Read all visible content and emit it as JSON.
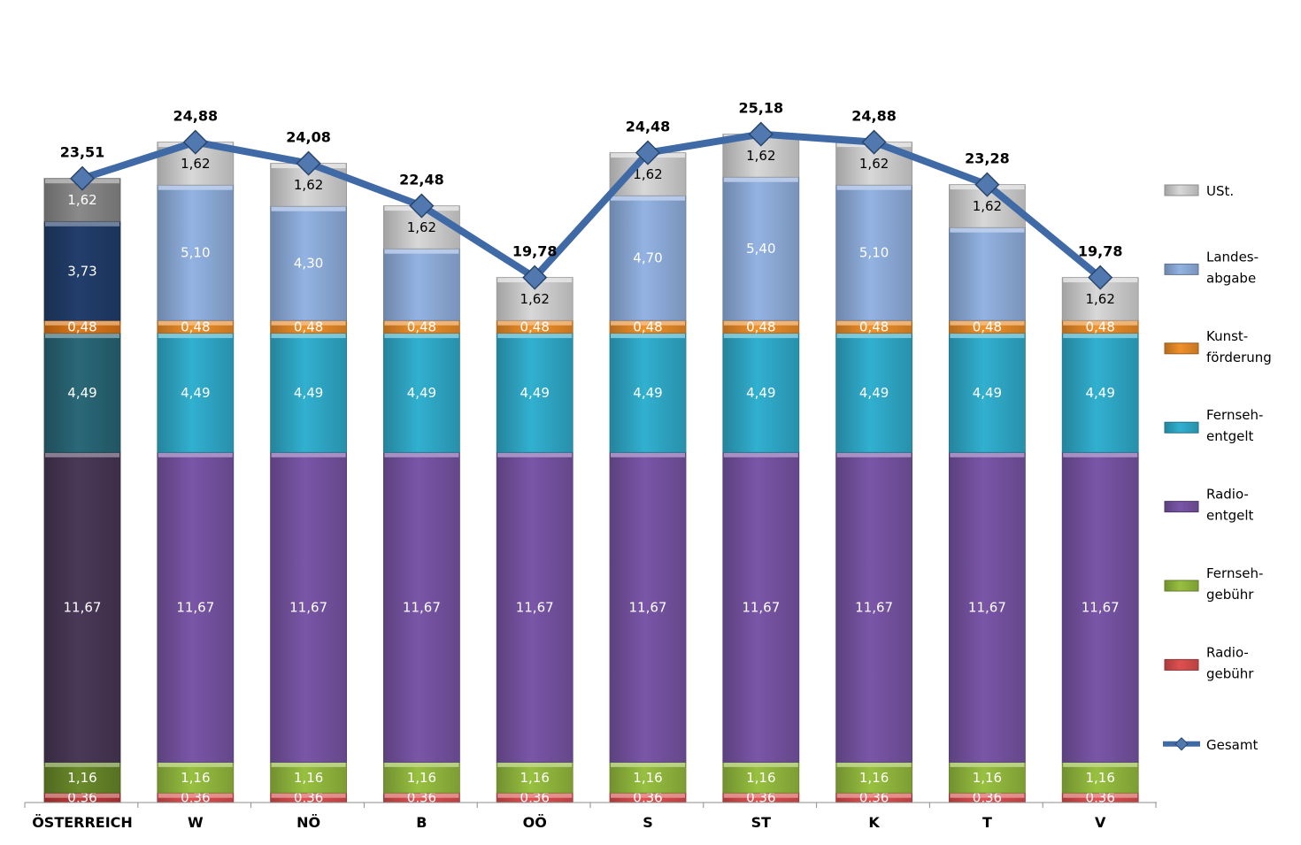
{
  "chart_data": {
    "type": "bar",
    "stacked": true,
    "categories": [
      "ÖSTERREICH",
      "W",
      "NÖ",
      "B",
      "OÖ",
      "S",
      "ST",
      "K",
      "T",
      "V"
    ],
    "series": [
      {
        "name": "Radio-gebühr",
        "legend": [
          "Radio-",
          "gebühr"
        ],
        "color": "#e05050",
        "values": [
          0.36,
          0.36,
          0.36,
          0.36,
          0.36,
          0.36,
          0.36,
          0.36,
          0.36,
          0.36
        ],
        "labels": [
          "0,36",
          "0,36",
          "0,36",
          "0,36",
          "0,36",
          "0,36",
          "0,36",
          "0,36",
          "0,36",
          "0,36"
        ]
      },
      {
        "name": "Fernseh-gebühr",
        "legend": [
          "Fernseh-",
          "gebühr"
        ],
        "color": "#98c040",
        "values": [
          1.16,
          1.16,
          1.16,
          1.16,
          1.16,
          1.16,
          1.16,
          1.16,
          1.16,
          1.16
        ],
        "labels": [
          "1,16",
          "1,16",
          "1,16",
          "1,16",
          "1,16",
          "1,16",
          "1,16",
          "1,16",
          "1,16",
          "1,16"
        ]
      },
      {
        "name": "Radio-entgelt",
        "legend": [
          "Radio-",
          "entgelt"
        ],
        "color": "#7a56a8",
        "values": [
          11.67,
          11.67,
          11.67,
          11.67,
          11.67,
          11.67,
          11.67,
          11.67,
          11.67,
          11.67
        ],
        "labels": [
          "11,67",
          "11,67",
          "11,67",
          "11,67",
          "11,67",
          "11,67",
          "11,67",
          "11,67",
          "11,67",
          "11,67"
        ]
      },
      {
        "name": "Fernseh-entgelt",
        "legend": [
          "Fernseh-",
          "entgelt"
        ],
        "color": "#31b0d0",
        "values": [
          4.49,
          4.49,
          4.49,
          4.49,
          4.49,
          4.49,
          4.49,
          4.49,
          4.49,
          4.49
        ],
        "labels": [
          "4,49",
          "4,49",
          "4,49",
          "4,49",
          "4,49",
          "4,49",
          "4,49",
          "4,49",
          "4,49",
          "4,49"
        ]
      },
      {
        "name": "Kunst-förderung",
        "legend": [
          "Kunst-",
          "förderung"
        ],
        "color": "#f0902a",
        "values": [
          0.48,
          0.48,
          0.48,
          0.48,
          0.48,
          0.48,
          0.48,
          0.48,
          0.48,
          0.48
        ],
        "labels": [
          "0,48",
          "0,48",
          "0,48",
          "0,48",
          "0,48",
          "0,48",
          "0,48",
          "0,48",
          "0,48",
          "0,48"
        ]
      },
      {
        "name": "Landes-abgabe",
        "legend": [
          "Landes-",
          "abgabe"
        ],
        "color": "#93b3e3",
        "values": [
          3.73,
          5.1,
          4.3,
          2.7,
          0,
          4.7,
          5.4,
          5.1,
          3.5,
          0
        ],
        "labels": [
          "3,73",
          "5,10",
          "4,30",
          "",
          "",
          "4,70",
          "5,40",
          "5,10",
          "",
          ""
        ]
      },
      {
        "name": "USt.",
        "legend": [
          "USt."
        ],
        "color": "#d8d8d8",
        "values": [
          1.62,
          1.62,
          1.62,
          1.62,
          1.62,
          1.62,
          1.62,
          1.62,
          1.62,
          1.62
        ],
        "labels": [
          "1,62",
          "1,62",
          "1,62",
          "1,62",
          "1,62",
          "1,62",
          "1,62",
          "1,62",
          "1,62",
          "1,62"
        ]
      }
    ],
    "line": {
      "name": "Gesamt",
      "legend": [
        "Gesamt"
      ],
      "color": "#3f6aa6",
      "values": [
        23.51,
        24.88,
        24.08,
        22.48,
        19.78,
        24.48,
        25.18,
        24.88,
        23.28,
        19.78
      ],
      "labels": [
        "23,51",
        "24,88",
        "24,08",
        "22,48",
        "19,78",
        "24,48",
        "25,18",
        "24,88",
        "23,28",
        "19,78"
      ]
    },
    "highlight_category": "ÖSTERREICH",
    "highlight_colors": {
      "Radio-gebühr": "#c03a3a",
      "Fernseh-gebühr": "#6a8a2a",
      "Radio-entgelt": "#4a3858",
      "Fernseh-entgelt": "#2a6878",
      "Kunst-förderung": "#e07818",
      "Landes-abgabe": "#223e6c",
      "USt.": "#8a8a8a"
    },
    "legend_position": "right",
    "grid": false,
    "ylim": [
      0,
      26
    ]
  }
}
